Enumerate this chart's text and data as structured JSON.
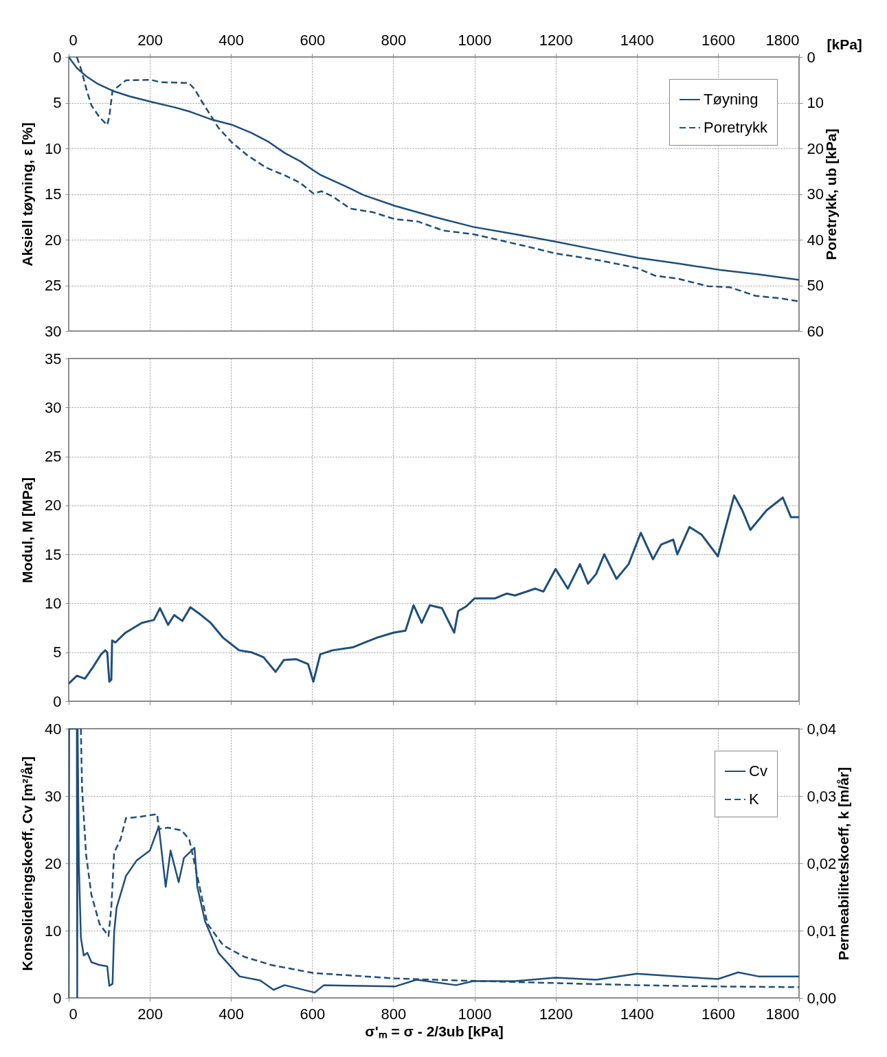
{
  "chart_data": [
    {
      "type": "line",
      "xlabel": "[kPa]",
      "ylabel": "Aksiell tøyning, ε  [%]",
      "y2label": "Poretrykk, ub  [kPa]",
      "xlim": [
        0,
        1800
      ],
      "xticks": [
        0,
        200,
        400,
        600,
        800,
        1000,
        1200,
        1400,
        1600,
        1800
      ],
      "ylim": [
        30,
        0
      ],
      "yticks": [
        0,
        5,
        10,
        15,
        20,
        25,
        30
      ],
      "y2lim": [
        60,
        0
      ],
      "y2ticks": [
        0,
        10,
        20,
        30,
        40,
        50,
        60
      ],
      "grid": true,
      "legend": "top right",
      "series": [
        {
          "name": "Tøyning",
          "color": "#1f4e79",
          "line_style": "solid",
          "x": [
            0,
            20,
            43,
            70,
            108,
            150,
            203,
            260,
            300,
            349,
            401,
            450,
            493,
            532,
            570,
            603,
            620,
            680,
            726,
            804,
            900,
            997,
            1100,
            1199,
            1300,
            1404,
            1500,
            1605,
            1700,
            1800
          ],
          "values": [
            0,
            1.2,
            2.1,
            2.9,
            3.7,
            4.3,
            4.9,
            5.5,
            6.0,
            6.8,
            7.4,
            8.3,
            9.3,
            10.5,
            11.4,
            12.4,
            12.9,
            14.1,
            15.1,
            16.3,
            17.5,
            18.6,
            19.4,
            20.2,
            21.1,
            22.0,
            22.6,
            23.3,
            23.8,
            24.4
          ]
        },
        {
          "name": "Poretrykk",
          "color": "#1f4e79",
          "line_style": "dashed",
          "axis": "y2",
          "x": [
            20,
            31,
            45,
            56,
            76,
            95,
            100,
            108,
            141,
            203,
            225,
            296,
            310,
            330,
            369,
            401,
            440,
            486,
            532,
            570,
            603,
            623,
            650,
            694,
            750,
            804,
            860,
            923,
            997,
            1062,
            1130,
            1199,
            1300,
            1368,
            1400,
            1446,
            1500,
            1576,
            1629,
            1693,
            1750,
            1800
          ],
          "values": [
            0,
            2.8,
            7.5,
            10.6,
            13.2,
            14.9,
            13.0,
            7.4,
            5.1,
            5.0,
            5.5,
            5.7,
            7.0,
            10.0,
            15.5,
            18.6,
            21.5,
            24.2,
            25.9,
            27.5,
            29.9,
            29.4,
            30.5,
            33.2,
            34.0,
            35.5,
            36.0,
            38.0,
            38.8,
            40.1,
            41.5,
            43.0,
            44.4,
            45.6,
            46.2,
            47.9,
            48.5,
            50.2,
            50.4,
            52.3,
            52.8,
            53.5
          ]
        }
      ]
    },
    {
      "type": "line",
      "ylabel": "Modul, M  [MPa]",
      "xlim": [
        0,
        1800
      ],
      "xticks": [
        0,
        200,
        400,
        600,
        800,
        1000,
        1200,
        1400,
        1600,
        1800
      ],
      "ylim": [
        0,
        35
      ],
      "yticks": [
        0,
        5,
        10,
        15,
        20,
        25,
        30,
        35
      ],
      "grid": true,
      "tick_labels": "y",
      "series": [
        {
          "color": "#1f4e79",
          "line_style": "solid",
          "x": [
            0,
            20,
            40,
            60,
            80,
            90,
            95,
            100,
            105,
            107,
            115,
            140,
            180,
            210,
            225,
            245,
            260,
            280,
            300,
            320,
            350,
            380,
            420,
            450,
            480,
            510,
            530,
            560,
            590,
            603,
            620,
            650,
            700,
            730,
            760,
            800,
            830,
            850,
            870,
            890,
            920,
            950,
            960,
            980,
            1000,
            1050,
            1080,
            1100,
            1150,
            1170,
            1200,
            1230,
            1260,
            1280,
            1300,
            1320,
            1350,
            1380,
            1410,
            1440,
            1460,
            1490,
            1500,
            1530,
            1560,
            1600,
            1640,
            1660,
            1680,
            1720,
            1760,
            1780,
            1800
          ],
          "values": [
            1.8,
            2.6,
            2.3,
            3.5,
            4.8,
            5.2,
            5.0,
            2.0,
            2.2,
            6.2,
            6.0,
            7.0,
            8.0,
            8.3,
            9.5,
            7.8,
            8.8,
            8.2,
            9.6,
            9.0,
            8.0,
            6.5,
            5.2,
            5.0,
            4.5,
            3.0,
            4.2,
            4.3,
            3.8,
            2.0,
            4.8,
            5.2,
            5.5,
            6.0,
            6.5,
            7.0,
            7.2,
            9.8,
            8.0,
            9.8,
            9.5,
            7.0,
            9.2,
            9.7,
            10.5,
            10.5,
            11.0,
            10.8,
            11.5,
            11.2,
            13.5,
            11.5,
            14.0,
            12.0,
            13.0,
            15.0,
            12.5,
            14.0,
            17.2,
            14.5,
            16.0,
            16.5,
            15.0,
            17.8,
            17.0,
            14.8,
            21.0,
            19.5,
            17.5,
            19.5,
            20.8,
            18.8,
            18.8
          ]
        }
      ]
    },
    {
      "type": "line",
      "xlabel": "σ'ₘ = σ - 2/3ub  [kPa]",
      "ylabel": "Konsolideringskoeff, Cv  [m²/år]",
      "y2label": "Permeabilitetskoeff, k [m/år]",
      "xlim": [
        0,
        1800
      ],
      "xticks": [
        0,
        200,
        400,
        600,
        800,
        1000,
        1200,
        1400,
        1600,
        1800
      ],
      "ylim": [
        0,
        40
      ],
      "yticks": [
        0,
        10,
        20,
        30,
        40
      ],
      "y2lim": [
        0,
        0.04
      ],
      "y2ticks": [
        {
          "value": 0,
          "label": "0,00"
        },
        {
          "value": 0.01,
          "label": "0,01"
        },
        {
          "value": 0.02,
          "label": "0,02"
        },
        {
          "value": 0.03,
          "label": "0,03"
        },
        {
          "value": 0.04,
          "label": "0,04"
        }
      ],
      "grid": true,
      "legend": "top right",
      "series": [
        {
          "name": "Cv",
          "color": "#1f4e79",
          "line_style": "solid",
          "x": [
            0,
            1,
            20,
            21,
            22,
            25,
            30,
            37,
            46,
            56,
            76,
            95,
            100,
            108,
            112,
            118,
            141,
            167,
            200,
            222,
            239,
            251,
            271,
            284,
            310,
            317,
            336,
            369,
            421,
            472,
            505,
            532,
            606,
            629,
            700,
            804,
            857,
            955,
            997,
            1100,
            1200,
            1300,
            1400,
            1500,
            1600,
            1650,
            1700,
            1800
          ],
          "values": [
            0,
            40,
            40,
            0,
            40,
            20,
            9,
            6.3,
            6.7,
            5.3,
            4.9,
            4.7,
            1.8,
            2.1,
            9.8,
            13.4,
            18.1,
            20.4,
            21.9,
            25.5,
            16.5,
            21.9,
            17.2,
            20.8,
            22.3,
            16.5,
            11.4,
            6.7,
            3.2,
            2.6,
            1.2,
            1.9,
            0.8,
            1.9,
            1.8,
            1.7,
            2.7,
            1.9,
            2.5,
            2.5,
            3.0,
            2.7,
            3.6,
            3.2,
            2.8,
            3.8,
            3.2,
            3.2
          ]
        },
        {
          "name": "K",
          "color": "#1f4e79",
          "line_style": "dashed",
          "axis": "y2",
          "x": [
            30,
            33,
            43,
            56,
            76,
            98,
            105,
            112,
            128,
            141,
            173,
            218,
            222,
            245,
            278,
            297,
            317,
            342,
            381,
            433,
            499,
            603,
            804,
            955,
            1200,
            1400,
            1600,
            1800
          ],
          "values": [
            0.04,
            0.031,
            0.0212,
            0.0153,
            0.011,
            0.0092,
            0.0134,
            0.0216,
            0.0236,
            0.0267,
            0.0269,
            0.0273,
            0.0251,
            0.0253,
            0.0249,
            0.0236,
            0.0181,
            0.011,
            0.0078,
            0.0061,
            0.0049,
            0.0037,
            0.0029,
            0.0026,
            0.0022,
            0.0019,
            0.0017,
            0.0016
          ]
        }
      ]
    }
  ]
}
